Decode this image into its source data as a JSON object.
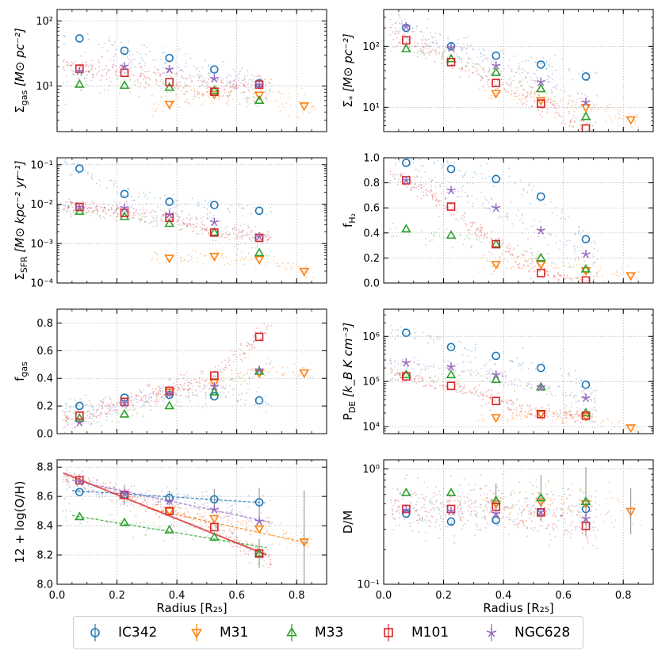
{
  "colors": {
    "IC342": "#1f77b4",
    "M31": "#ff7f0e",
    "M33": "#2ca02c",
    "M101": "#d62728",
    "NGC628": "#9467bd"
  },
  "legend": [
    {
      "name": "IC342",
      "marker": "circle"
    },
    {
      "name": "M31",
      "marker": "tri_down"
    },
    {
      "name": "M33",
      "marker": "tri_up"
    },
    {
      "name": "M101",
      "marker": "square"
    },
    {
      "name": "NGC628",
      "marker": "star"
    }
  ],
  "chart_data": [
    {
      "type": "scatter",
      "id": "sigma_gas",
      "ylabel_main": "Σ",
      "ylabel_sub": "gas",
      "ylabel_unit": "[M⊙ pc⁻²]",
      "yscale": "log",
      "ylim": [
        2,
        150
      ],
      "xlim": [
        0,
        0.9
      ],
      "yticks": [
        {
          "v": 10,
          "label": "10¹"
        },
        {
          "v": 100,
          "label": "10²"
        }
      ],
      "series": [
        {
          "name": "IC342",
          "x": [
            0.075,
            0.225,
            0.375,
            0.525,
            0.675
          ],
          "y": [
            54,
            35,
            27,
            18,
            11
          ]
        },
        {
          "name": "M31",
          "x": [
            0.375,
            0.525,
            0.675,
            0.825
          ],
          "y": [
            5.3,
            7.5,
            7.3,
            5.0
          ]
        },
        {
          "name": "M33",
          "x": [
            0.075,
            0.225,
            0.375,
            0.525,
            0.675
          ],
          "y": [
            10.6,
            10.2,
            9.5,
            8.5,
            6.0
          ]
        },
        {
          "name": "M101",
          "x": [
            0.075,
            0.225,
            0.375,
            0.525,
            0.675
          ],
          "y": [
            18.5,
            16,
            11.5,
            8.2,
            10.5
          ]
        },
        {
          "name": "NGC628",
          "x": [
            0.075,
            0.225,
            0.375,
            0.525,
            0.675
          ],
          "y": [
            17,
            20,
            18,
            13,
            10.5
          ]
        }
      ]
    },
    {
      "type": "scatter",
      "id": "sigma_star",
      "ylabel_main": "Σ",
      "ylabel_sub": "*",
      "ylabel_unit": "[M⊙ pc⁻²]",
      "yscale": "log",
      "ylim": [
        4,
        400
      ],
      "xlim": [
        0,
        0.9
      ],
      "yticks": [
        {
          "v": 10,
          "label": "10¹"
        },
        {
          "v": 100,
          "label": "10²"
        }
      ],
      "series": [
        {
          "name": "IC342",
          "x": [
            0.075,
            0.225,
            0.375,
            0.525,
            0.675
          ],
          "y": [
            200,
            100,
            70,
            50,
            32
          ]
        },
        {
          "name": "M31",
          "x": [
            0.375,
            0.525,
            0.675,
            0.825
          ],
          "y": [
            17,
            13,
            10,
            6.3
          ]
        },
        {
          "name": "M33",
          "x": [
            0.075,
            0.225,
            0.375,
            0.525,
            0.675
          ],
          "y": [
            90,
            62,
            37,
            20,
            7
          ]
        },
        {
          "name": "M101",
          "x": [
            0.075,
            0.225,
            0.375,
            0.525,
            0.675
          ],
          "y": [
            125,
            55,
            25,
            11.5,
            4.5
          ]
        },
        {
          "name": "NGC628",
          "x": [
            0.075,
            0.225,
            0.375,
            0.525,
            0.675
          ],
          "y": [
            210,
            95,
            48,
            26,
            12
          ]
        }
      ]
    },
    {
      "type": "scatter",
      "id": "sigma_sfr",
      "ylabel_main": "Σ",
      "ylabel_sub": "SFR",
      "ylabel_unit": "[M⊙ kpc⁻² yr⁻¹]",
      "yscale": "log",
      "ylim": [
        0.0001,
        0.15
      ],
      "xlim": [
        0,
        0.9
      ],
      "yticks": [
        {
          "v": 0.0001,
          "label": "10⁻⁴"
        },
        {
          "v": 0.001,
          "label": "10⁻³"
        },
        {
          "v": 0.01,
          "label": "10⁻²"
        },
        {
          "v": 0.1,
          "label": "10⁻¹"
        }
      ],
      "series": [
        {
          "name": "IC342",
          "x": [
            0.075,
            0.225,
            0.375,
            0.525,
            0.675
          ],
          "y": [
            0.08,
            0.018,
            0.0115,
            0.0095,
            0.0068
          ]
        },
        {
          "name": "M31",
          "x": [
            0.375,
            0.525,
            0.675,
            0.825
          ],
          "y": [
            0.00043,
            0.00048,
            0.0004,
            0.0002
          ]
        },
        {
          "name": "M33",
          "x": [
            0.075,
            0.225,
            0.375,
            0.525,
            0.675
          ],
          "y": [
            0.0065,
            0.0048,
            0.0032,
            0.0019,
            0.00058
          ]
        },
        {
          "name": "M101",
          "x": [
            0.075,
            0.225,
            0.375,
            0.525,
            0.675
          ],
          "y": [
            0.0085,
            0.006,
            0.0045,
            0.0019,
            0.0014
          ]
        },
        {
          "name": "NGC628",
          "x": [
            0.075,
            0.225,
            0.375,
            0.525,
            0.675
          ],
          "y": [
            0.0085,
            0.008,
            0.0055,
            0.0035,
            0.0015
          ]
        }
      ]
    },
    {
      "type": "scatter",
      "id": "f_h2",
      "ylabel_main": "f",
      "ylabel_sub": "H₂",
      "ylabel_unit": "",
      "yscale": "linear",
      "ylim": [
        0,
        1.0
      ],
      "xlim": [
        0,
        0.9
      ],
      "yticks": [
        {
          "v": 0,
          "label": "0.0"
        },
        {
          "v": 0.2,
          "label": "0.2"
        },
        {
          "v": 0.4,
          "label": "0.4"
        },
        {
          "v": 0.6,
          "label": "0.6"
        },
        {
          "v": 0.8,
          "label": "0.8"
        },
        {
          "v": 1.0,
          "label": "1.0"
        }
      ],
      "series": [
        {
          "name": "IC342",
          "x": [
            0.075,
            0.225,
            0.375,
            0.525,
            0.675
          ],
          "y": [
            0.96,
            0.91,
            0.83,
            0.69,
            0.35
          ]
        },
        {
          "name": "M31",
          "x": [
            0.375,
            0.525,
            0.675,
            0.825
          ],
          "y": [
            0.15,
            0.15,
            0.1,
            0.06
          ]
        },
        {
          "name": "M33",
          "x": [
            0.075,
            0.225,
            0.375,
            0.525,
            0.675
          ],
          "y": [
            0.43,
            0.38,
            0.31,
            0.2,
            0.11
          ]
        },
        {
          "name": "M101",
          "x": [
            0.075,
            0.225,
            0.375,
            0.525,
            0.675
          ],
          "y": [
            0.82,
            0.61,
            0.31,
            0.08,
            0.02
          ]
        },
        {
          "name": "NGC628",
          "x": [
            0.075,
            0.225,
            0.375,
            0.525,
            0.675
          ],
          "y": [
            0.82,
            0.74,
            0.6,
            0.42,
            0.23
          ]
        }
      ]
    },
    {
      "type": "scatter",
      "id": "f_gas",
      "ylabel_main": "f",
      "ylabel_sub": "gas",
      "ylabel_unit": "",
      "yscale": "linear",
      "ylim": [
        0,
        0.9
      ],
      "xlim": [
        0,
        0.9
      ],
      "yticks": [
        {
          "v": 0,
          "label": "0.0"
        },
        {
          "v": 0.2,
          "label": "0.2"
        },
        {
          "v": 0.4,
          "label": "0.4"
        },
        {
          "v": 0.6,
          "label": "0.6"
        },
        {
          "v": 0.8,
          "label": "0.8"
        }
      ],
      "series": [
        {
          "name": "IC342",
          "x": [
            0.075,
            0.225,
            0.375,
            0.525,
            0.675
          ],
          "y": [
            0.2,
            0.26,
            0.28,
            0.27,
            0.24
          ]
        },
        {
          "name": "M31",
          "x": [
            0.375,
            0.525,
            0.675,
            0.825
          ],
          "y": [
            0.3,
            0.37,
            0.44,
            0.44
          ]
        },
        {
          "name": "M33",
          "x": [
            0.075,
            0.225,
            0.375,
            0.525,
            0.675
          ],
          "y": [
            0.11,
            0.14,
            0.2,
            0.3,
            0.45
          ]
        },
        {
          "name": "M101",
          "x": [
            0.075,
            0.225,
            0.375,
            0.525,
            0.675
          ],
          "y": [
            0.13,
            0.23,
            0.31,
            0.42,
            0.7
          ]
        },
        {
          "name": "NGC628",
          "x": [
            0.075,
            0.225,
            0.375,
            0.525,
            0.675
          ],
          "y": [
            0.08,
            0.22,
            0.29,
            0.34,
            0.46
          ]
        }
      ]
    },
    {
      "type": "scatter",
      "id": "p_de",
      "ylabel_main": "P",
      "ylabel_sub": "DE",
      "ylabel_unit": "[k_B K cm⁻³]",
      "yscale": "log",
      "ylim": [
        7000,
        4000000
      ],
      "xlim": [
        0,
        0.9
      ],
      "yticks": [
        {
          "v": 10000,
          "label": "10⁴"
        },
        {
          "v": 100000,
          "label": "10⁵"
        },
        {
          "v": 1000000,
          "label": "10⁶"
        }
      ],
      "series": [
        {
          "name": "IC342",
          "x": [
            0.075,
            0.225,
            0.375,
            0.525,
            0.675
          ],
          "y": [
            1200000,
            580000,
            370000,
            200000,
            85000
          ]
        },
        {
          "name": "M31",
          "x": [
            0.375,
            0.525,
            0.675,
            0.825
          ],
          "y": [
            16000,
            19000,
            17000,
            9500
          ]
        },
        {
          "name": "M33",
          "x": [
            0.075,
            0.225,
            0.375,
            0.525,
            0.675
          ],
          "y": [
            140000,
            140000,
            110000,
            75000,
            20000
          ]
        },
        {
          "name": "M101",
          "x": [
            0.075,
            0.225,
            0.375,
            0.525,
            0.675
          ],
          "y": [
            130000,
            80000,
            37000,
            19000,
            17500
          ]
        },
        {
          "name": "NGC628",
          "x": [
            0.075,
            0.225,
            0.375,
            0.525,
            0.675
          ],
          "y": [
            260000,
            210000,
            140000,
            75000,
            43000
          ]
        }
      ]
    },
    {
      "type": "scatter",
      "id": "metallicity",
      "ylabel_main": "12 + log(O/H)",
      "ylabel_sub": "",
      "ylabel_unit": "",
      "xlabel": "Radius [R₂₅]",
      "yscale": "linear",
      "ylim": [
        8.0,
        8.85
      ],
      "xlim": [
        0,
        0.9
      ],
      "yticks": [
        {
          "v": 8.0,
          "label": "8.0"
        },
        {
          "v": 8.2,
          "label": "8.2"
        },
        {
          "v": 8.4,
          "label": "8.4"
        },
        {
          "v": 8.6,
          "label": "8.6"
        },
        {
          "v": 8.8,
          "label": "8.8"
        }
      ],
      "series": [
        {
          "name": "IC342",
          "x": [
            0.075,
            0.225,
            0.375,
            0.525,
            0.675
          ],
          "y": [
            8.63,
            8.61,
            8.59,
            8.58,
            8.56
          ],
          "err": [
            0,
            0,
            0.05,
            0.07,
            0.1
          ],
          "trend": [
            [
              0.05,
              8.64
            ],
            [
              0.7,
              8.555
            ]
          ]
        },
        {
          "name": "M31",
          "x": [
            0.375,
            0.525,
            0.675,
            0.825
          ],
          "y": [
            8.5,
            8.45,
            8.38,
            8.29
          ],
          "err": [
            0,
            0,
            0,
            0.35
          ],
          "trend": [
            [
              0.3,
              8.52
            ],
            [
              0.84,
              8.28
            ]
          ]
        },
        {
          "name": "M33",
          "x": [
            0.075,
            0.225,
            0.375,
            0.525,
            0.675
          ],
          "y": [
            8.46,
            8.42,
            8.37,
            8.32,
            8.21
          ],
          "err": [
            0,
            0,
            0,
            0,
            0
          ],
          "trend": [
            [
              0.05,
              8.47
            ],
            [
              0.7,
              8.25
            ]
          ]
        },
        {
          "name": "M101",
          "x": [
            0.075,
            0.225,
            0.375,
            0.525,
            0.675
          ],
          "y": [
            8.71,
            8.61,
            8.5,
            8.39,
            8.21
          ],
          "err": [
            0,
            0.07,
            0,
            0,
            0.1
          ],
          "trend": [
            [
              0.02,
              8.76
            ],
            [
              0.7,
              8.2
            ]
          ]
        },
        {
          "name": "NGC628",
          "x": [
            0.075,
            0.225,
            0.375,
            0.525,
            0.675
          ],
          "y": [
            8.7,
            8.62,
            8.57,
            8.51,
            8.43
          ],
          "err": [
            0,
            0,
            0,
            0,
            0
          ],
          "trend": [
            [
              0.05,
              8.71
            ],
            [
              0.72,
              8.42
            ]
          ]
        }
      ]
    },
    {
      "type": "scatter",
      "id": "d_m",
      "ylabel_main": "D/M",
      "ylabel_sub": "",
      "ylabel_unit": "",
      "xlabel": "Radius [R₂₅]",
      "yscale": "log",
      "ylim": [
        0.1,
        1.2
      ],
      "xlim": [
        0,
        0.9
      ],
      "yticks": [
        {
          "v": 0.1,
          "label": "10⁻¹"
        },
        {
          "v": 1.0,
          "label": "10⁰"
        }
      ],
      "series": [
        {
          "name": "IC342",
          "x": [
            0.075,
            0.225,
            0.375,
            0.525,
            0.675
          ],
          "y": [
            0.41,
            0.35,
            0.36,
            0.42,
            0.45
          ],
          "err": [
            0,
            0,
            0,
            0,
            0
          ]
        },
        {
          "name": "M31",
          "x": [
            0.375,
            0.525,
            0.675,
            0.825
          ],
          "y": [
            0.5,
            0.52,
            0.5,
            0.43
          ],
          "err": [
            0,
            0,
            0,
            0.2
          ]
        },
        {
          "name": "M33",
          "x": [
            0.075,
            0.225,
            0.375,
            0.525,
            0.675
          ],
          "y": [
            0.62,
            0.62,
            0.53,
            0.56,
            0.52
          ],
          "err": [
            0,
            0,
            0.15,
            0.2,
            0.3
          ]
        },
        {
          "name": "M101",
          "x": [
            0.075,
            0.225,
            0.375,
            0.525,
            0.675
          ],
          "y": [
            0.45,
            0.45,
            0.47,
            0.42,
            0.32
          ],
          "err": [
            0,
            0,
            0,
            0,
            0
          ]
        },
        {
          "name": "NGC628",
          "x": [
            0.075,
            0.225,
            0.375,
            0.525,
            0.675
          ],
          "y": [
            0.44,
            0.43,
            0.41,
            0.42,
            0.37
          ],
          "err": [
            0,
            0,
            0,
            0,
            0
          ]
        }
      ]
    }
  ],
  "xticks": [
    "0.0",
    "0.2",
    "0.4",
    "0.6",
    "0.8"
  ],
  "xtick_values": [
    0,
    0.2,
    0.4,
    0.6,
    0.8
  ]
}
